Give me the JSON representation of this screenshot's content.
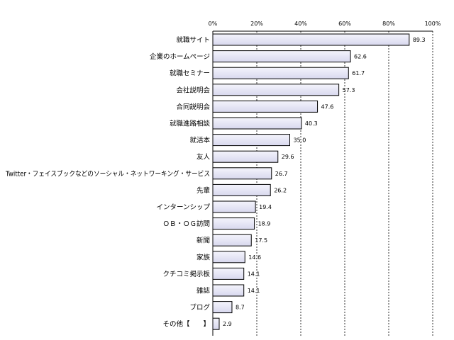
{
  "chart_data": {
    "type": "bar",
    "orientation": "horizontal",
    "xlim": [
      0,
      100
    ],
    "x_ticks": [
      "0%",
      "20%",
      "40%",
      "60%",
      "80%",
      "100%"
    ],
    "grid": true,
    "bar_color": "#e4e4f4",
    "categories": [
      "就職サイト",
      "企業のホームページ",
      "就職セミナー",
      "会社説明会",
      "合同説明会",
      "就職進路相談",
      "就活本",
      "友人",
      "Twitter・フェイスブックなどのソーシャル・ネットワーキング・サービス",
      "先輩",
      "インターンシップ",
      "ＯＢ・ＯＧ訪問",
      "新聞",
      "家族",
      "クチコミ掲示板",
      "雑誌",
      "ブログ",
      "その他【　　】"
    ],
    "values": [
      89.3,
      62.6,
      61.7,
      57.3,
      47.6,
      40.3,
      35.0,
      29.6,
      26.7,
      26.2,
      19.4,
      18.9,
      17.5,
      14.6,
      14.1,
      14.1,
      8.7,
      2.9
    ]
  }
}
